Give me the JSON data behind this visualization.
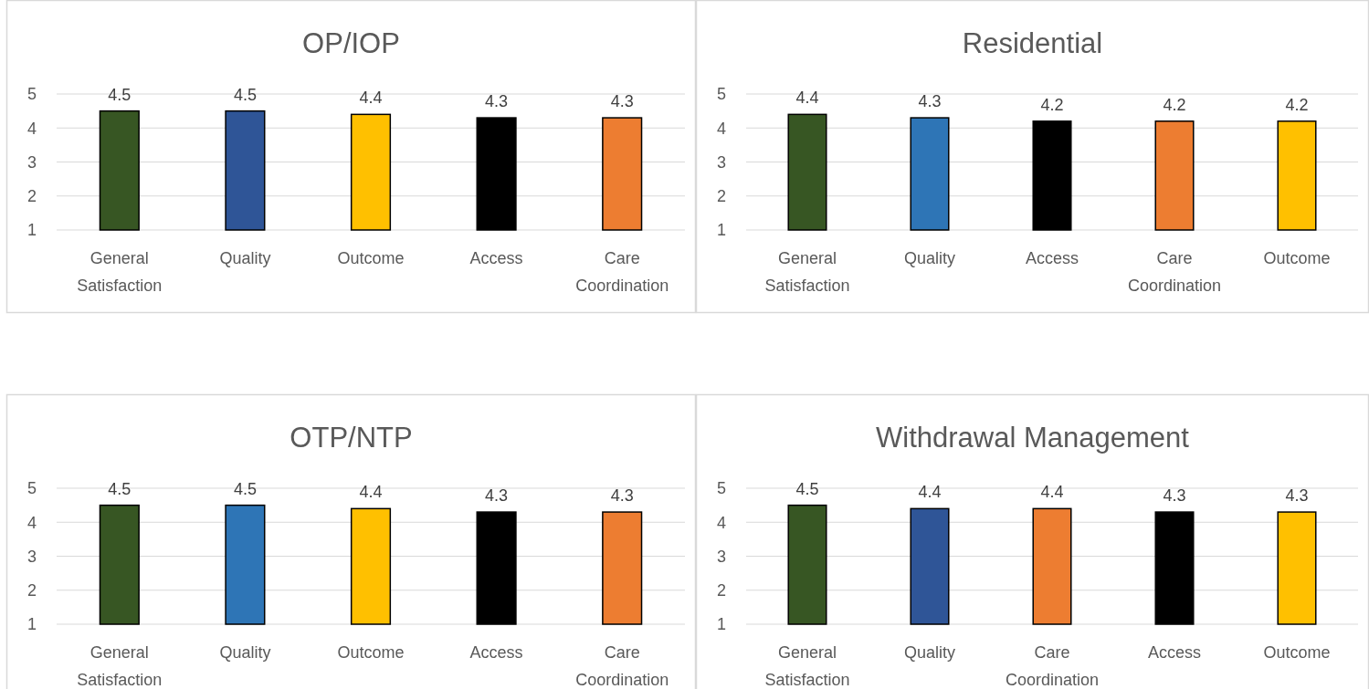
{
  "chart_data": [
    {
      "type": "bar",
      "title": "OP/IOP",
      "categories": [
        "General Satisfaction",
        "Quality",
        "Outcome",
        "Access",
        "Care Coordination"
      ],
      "values": [
        4.5,
        4.5,
        4.4,
        4.3,
        4.3
      ],
      "colors": [
        "#375623",
        "#2f5597",
        "#ffc000",
        "#000000",
        "#ed7d31"
      ],
      "ylim": [
        1,
        5
      ],
      "yticks": [
        1,
        2,
        3,
        4,
        5
      ],
      "grid": "y",
      "data_labels": true
    },
    {
      "type": "bar",
      "title": "Residential",
      "categories": [
        "General Satisfaction",
        "Quality",
        "Access",
        "Care Coordination",
        "Outcome"
      ],
      "values": [
        4.4,
        4.3,
        4.2,
        4.2,
        4.2
      ],
      "colors": [
        "#375623",
        "#2e75b6",
        "#000000",
        "#ed7d31",
        "#ffc000"
      ],
      "ylim": [
        1,
        5
      ],
      "yticks": [
        1,
        2,
        3,
        4,
        5
      ],
      "grid": "y",
      "data_labels": true
    },
    {
      "type": "bar",
      "title": "OTP/NTP",
      "categories": [
        "General Satisfaction",
        "Quality",
        "Outcome",
        "Access",
        "Care Coordination"
      ],
      "values": [
        4.5,
        4.5,
        4.4,
        4.3,
        4.3
      ],
      "colors": [
        "#375623",
        "#2e75b6",
        "#ffc000",
        "#000000",
        "#ed7d31"
      ],
      "ylim": [
        1,
        5
      ],
      "yticks": [
        1,
        2,
        3,
        4,
        5
      ],
      "grid": "y",
      "data_labels": true
    },
    {
      "type": "bar",
      "title": "Withdrawal Management",
      "categories": [
        "General Satisfaction",
        "Quality",
        "Care Coordination",
        "Access",
        "Outcome"
      ],
      "values": [
        4.5,
        4.4,
        4.4,
        4.3,
        4.3
      ],
      "colors": [
        "#375623",
        "#2f5597",
        "#ed7d31",
        "#000000",
        "#ffc000"
      ],
      "ylim": [
        1,
        5
      ],
      "yticks": [
        1,
        2,
        3,
        4,
        5
      ],
      "grid": "y",
      "data_labels": true
    }
  ]
}
